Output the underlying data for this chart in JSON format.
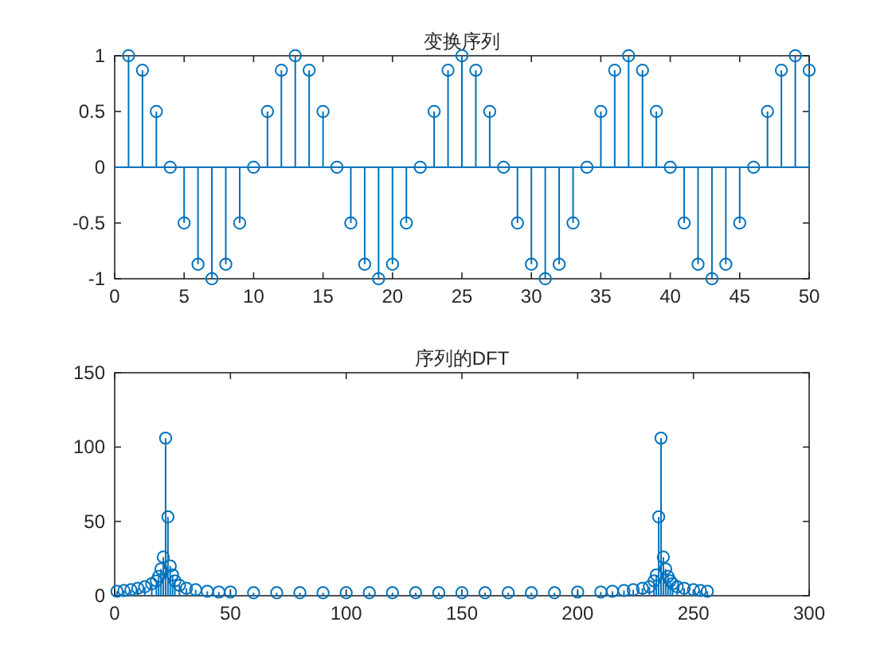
{
  "chart_data": [
    {
      "type": "lollipop",
      "title": "变换序列",
      "marker": "circle",
      "color": "#0072bd",
      "xlim": [
        0,
        50
      ],
      "ylim": [
        -1,
        1
      ],
      "xticks": [
        0,
        5,
        10,
        15,
        20,
        25,
        30,
        35,
        40,
        45,
        50
      ],
      "yticks": [
        -1,
        -0.5,
        0,
        0.5,
        1
      ],
      "ref_lines": [
        {
          "axis": "y",
          "value": 0,
          "color": "#0072bd"
        }
      ],
      "x": [
        1,
        2,
        3,
        4,
        5,
        6,
        7,
        8,
        9,
        10,
        11,
        12,
        13,
        14,
        15,
        16,
        17,
        18,
        19,
        20,
        21,
        22,
        23,
        24,
        25,
        26,
        27,
        28,
        29,
        30,
        31,
        32,
        33,
        34,
        35,
        36,
        37,
        38,
        39,
        40,
        41,
        42,
        43,
        44,
        45,
        46,
        47,
        48,
        49,
        50
      ],
      "values": [
        1,
        0.87,
        0.5,
        0,
        -0.5,
        -0.87,
        -1,
        -0.87,
        -0.5,
        0,
        0.5,
        0.87,
        1,
        0.87,
        0.5,
        0,
        -0.5,
        -0.87,
        -1,
        -0.87,
        -0.5,
        0,
        0.5,
        0.87,
        1,
        0.87,
        0.5,
        0,
        -0.5,
        -0.87,
        -1,
        -0.87,
        -0.5,
        0,
        0.5,
        0.87,
        1,
        0.87,
        0.5,
        0,
        -0.5,
        -0.87,
        -1,
        -0.87,
        -0.5,
        0,
        0.5,
        0.87,
        1,
        0.87
      ]
    },
    {
      "type": "lollipop",
      "title": "序列的DFT",
      "marker": "circle",
      "color": "#0072bd",
      "xlim": [
        0,
        300
      ],
      "ylim": [
        0,
        150
      ],
      "xticks": [
        0,
        50,
        100,
        150,
        200,
        250,
        300
      ],
      "yticks": [
        0,
        50,
        100,
        150
      ],
      "x": [
        1,
        4,
        7,
        10,
        13,
        16,
        18,
        19,
        20,
        21,
        22,
        23,
        24,
        25,
        26,
        28,
        31,
        35,
        40,
        45,
        50,
        60,
        70,
        80,
        90,
        100,
        110,
        120,
        130,
        140,
        150,
        160,
        170,
        180,
        190,
        200,
        210,
        215,
        220,
        224,
        228,
        231,
        233,
        234,
        235,
        236,
        237,
        238,
        239,
        240,
        241,
        243,
        246,
        250,
        253,
        256
      ],
      "values": [
        3,
        3.5,
        4,
        5,
        6,
        8,
        10,
        13,
        18,
        26,
        106,
        53,
        20,
        14,
        10,
        7,
        5,
        4,
        3,
        2.5,
        2.5,
        2,
        2,
        2,
        2,
        2,
        2,
        2,
        2,
        2,
        2,
        2,
        2,
        2,
        2,
        2.5,
        2.5,
        3,
        3.5,
        4,
        5,
        6,
        10,
        14,
        53,
        106,
        26,
        18,
        13,
        10,
        8,
        6,
        5,
        4,
        3.5,
        3
      ]
    }
  ]
}
